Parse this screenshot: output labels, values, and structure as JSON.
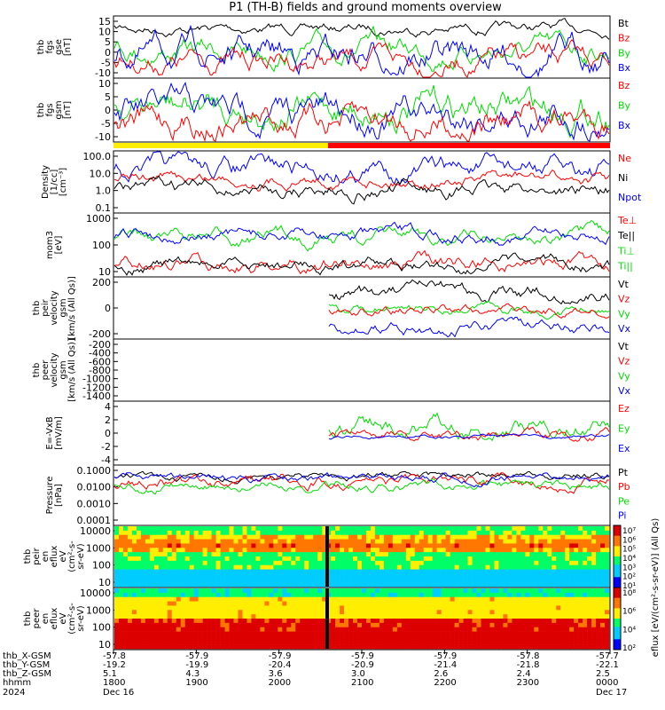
{
  "title": "P1 (TH-B) fields and ground moments overview",
  "colors": {
    "black": "#000000",
    "red": "#ff0000",
    "green": "#00dd00",
    "blue": "#0000ff",
    "yellow": "#ffee00"
  },
  "panels": [
    {
      "ylabel": [
        "thb",
        "fgs",
        "gse",
        "[nT]"
      ],
      "ticks": [
        "15",
        "10",
        "5",
        "0",
        "-5",
        "-10"
      ],
      "legend": [
        {
          "t": "Bt",
          "c": "black"
        },
        {
          "t": "Bz",
          "c": "red"
        },
        {
          "t": "By",
          "c": "green"
        },
        {
          "t": "Bx",
          "c": "blue"
        }
      ]
    },
    {
      "ylabel": [
        "thb",
        "fgs",
        "gsm",
        "[nT]"
      ],
      "ticks": [
        "10",
        "5",
        "0",
        "-5",
        "-10"
      ],
      "legend": [
        {
          "t": "Bz",
          "c": "red"
        },
        {
          "t": "By",
          "c": "green"
        },
        {
          "t": "Bx",
          "c": "blue"
        }
      ]
    },
    {
      "ylabel": [
        "Density",
        "[1/cc]",
        "[cm⁻³]"
      ],
      "ticks": [
        "100.0",
        "10.0",
        "1.0",
        "0.1"
      ],
      "legend": [
        {
          "t": "Ne",
          "c": "red"
        },
        {
          "t": "Ni",
          "c": "black"
        },
        {
          "t": "Npot",
          "c": "blue"
        }
      ]
    },
    {
      "ylabel": [
        "mom3",
        "[eV]"
      ],
      "ticks": [
        "1000",
        "100",
        "10"
      ],
      "legend": [
        {
          "t": "Te⊥",
          "c": "red"
        },
        {
          "t": "Te||",
          "c": "black"
        },
        {
          "t": "Ti⊥",
          "c": "green"
        },
        {
          "t": "Ti||",
          "c": "green"
        }
      ]
    },
    {
      "ylabel": [
        "thb",
        "peir",
        "velocity",
        "gsm",
        "[km/s (All Qs)]"
      ],
      "ticks": [
        "200",
        "0",
        "-200"
      ],
      "legend": [
        {
          "t": "Vt",
          "c": "black"
        },
        {
          "t": "Vz",
          "c": "red"
        },
        {
          "t": "Vy",
          "c": "green"
        },
        {
          "t": "Vx",
          "c": "blue"
        }
      ]
    },
    {
      "ylabel": [
        "thb",
        "peer",
        "velocity",
        "gsm",
        "[km/s (All Qs)]"
      ],
      "ticks": [
        "-200",
        "-400",
        "-600",
        "-800",
        "-1000",
        "-1200",
        "-1400"
      ],
      "legend": [
        {
          "t": "Vt",
          "c": "black"
        },
        {
          "t": "Vz",
          "c": "red"
        },
        {
          "t": "Vy",
          "c": "green"
        },
        {
          "t": "Vx",
          "c": "blue"
        }
      ]
    },
    {
      "ylabel": [
        "E=-VxB",
        "[mV/m]"
      ],
      "ticks": [
        "4",
        "2",
        "0",
        "-2",
        "-4"
      ],
      "legend": [
        {
          "t": "Ez",
          "c": "red"
        },
        {
          "t": "Ey",
          "c": "green"
        },
        {
          "t": "Ex",
          "c": "blue"
        }
      ]
    },
    {
      "ylabel": [
        "Pressure",
        "[nPa]"
      ],
      "ticks": [
        "0.1000",
        "0.0100",
        "0.0010",
        "0.0001"
      ],
      "legend": [
        {
          "t": "Pt",
          "c": "black"
        },
        {
          "t": "Pb",
          "c": "red"
        },
        {
          "t": "Pe",
          "c": "green"
        },
        {
          "t": "Pi",
          "c": "blue"
        }
      ]
    },
    {
      "ylabel": [
        "thb",
        "peir",
        "en",
        "eflux",
        "eV",
        "(cm²-s-",
        "sr-eV)"
      ],
      "ticks": [
        "10000",
        "1000",
        "100",
        "10"
      ]
    },
    {
      "ylabel": [
        "thb",
        "peer",
        "en",
        "eflux",
        "eV",
        "(cm²-s-",
        "sr-eV)"
      ],
      "ticks": [
        "10000",
        "1000",
        "100",
        "10"
      ]
    }
  ],
  "colorbars": [
    {
      "ticks": [
        "10⁷",
        "10⁶",
        "10⁵",
        "10⁴",
        "10³",
        "10²",
        "10¹"
      ],
      "label": "eflux [eV/(cm²-s-sr-eV)] (All Qs)"
    },
    {
      "ticks": [
        "10⁸",
        "10⁶",
        "10⁴",
        "10²"
      ],
      "label": "[eV/(cm²-s-sr-eV)]"
    }
  ],
  "xaxis": {
    "row_labels": [
      "thb_X-GSM",
      "thb_Y-GSM",
      "thb_Z-GSM",
      "hhmm",
      "2024"
    ],
    "columns": [
      [
        "-57.8",
        "-19.2",
        "5.1",
        "1800",
        "Dec 16"
      ],
      [
        "-57.9",
        "-19.9",
        "4.3",
        "1900",
        ""
      ],
      [
        "-57.9",
        "-20.4",
        "3.6",
        "2000",
        ""
      ],
      [
        "-57.9",
        "-20.9",
        "3.0",
        "2100",
        ""
      ],
      [
        "-57.9",
        "-21.4",
        "2.6",
        "2200",
        ""
      ],
      [
        "-57.8",
        "-21.8",
        "2.4",
        "2300",
        ""
      ],
      [
        "-57.7",
        "-22.1",
        "2.5",
        "0000",
        "Dec 17"
      ]
    ]
  },
  "chart_data": {
    "type": "line",
    "x_range": [
      "2024-12-16 17:40",
      "2024-12-17 00:00"
    ],
    "series_summary": [
      {
        "panel": "Bt",
        "name": "Bt",
        "approx_range_nT": [
          7,
          16
        ]
      },
      {
        "panel": "fgs gsm",
        "name": "Bz",
        "approx_range_nT": [
          -12,
          5
        ]
      },
      {
        "panel": "Density",
        "name": "Ni",
        "approx_range": [
          0.2,
          5
        ]
      },
      {
        "panel": "peir velocity",
        "name": "Vt",
        "approx_range": [
          0,
          300
        ]
      },
      {
        "panel": "E=-VxB",
        "name": "Ey",
        "approx_range": [
          -1,
          3
        ]
      }
    ]
  }
}
